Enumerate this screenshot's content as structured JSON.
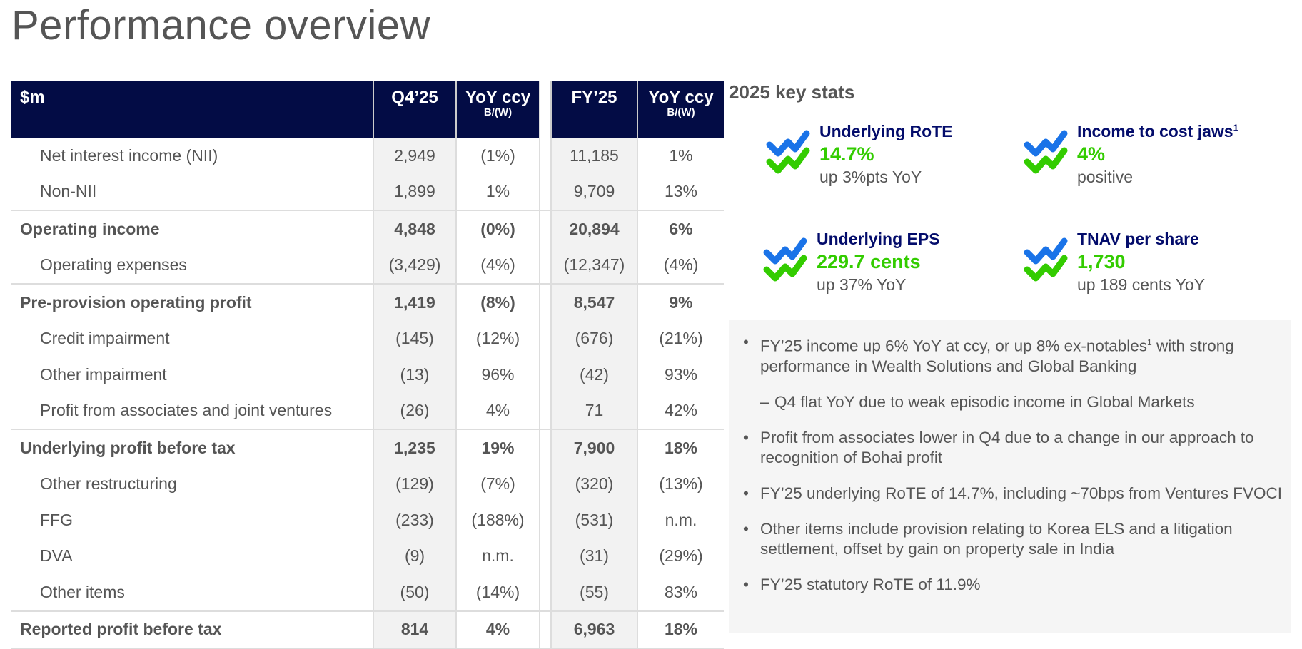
{
  "title": "Performance overview",
  "table": {
    "headers": {
      "label": "$m",
      "q4": "Q4’25",
      "yoy1": "YoY ccy",
      "yoy1_sub": "B/(W)",
      "fy": "FY’25",
      "yoy2": "YoY ccy",
      "yoy2_sub": "B/(W)"
    },
    "rows": [
      {
        "label": "Net interest income (NII)",
        "q4": "2,949",
        "yoy_q4": "(1%)",
        "fy": "11,185",
        "yoy_fy": "1%"
      },
      {
        "label": "Non-NII",
        "q4": "1,899",
        "yoy_q4": "1%",
        "fy": "9,709",
        "yoy_fy": "13%"
      },
      {
        "label": "Operating income",
        "q4": "4,848",
        "yoy_q4": "(0%)",
        "fy": "20,894",
        "yoy_fy": "6%"
      },
      {
        "label": "Operating expenses",
        "q4": "(3,429)",
        "yoy_q4": "(4%)",
        "fy": "(12,347)",
        "yoy_fy": "(4%)"
      },
      {
        "label": "Pre-provision operating profit",
        "q4": "1,419",
        "yoy_q4": "(8%)",
        "fy": "8,547",
        "yoy_fy": "9%"
      },
      {
        "label": "Credit impairment",
        "q4": "(145)",
        "yoy_q4": "(12%)",
        "fy": "(676)",
        "yoy_fy": "(21%)"
      },
      {
        "label": "Other impairment",
        "q4": "(13)",
        "yoy_q4": "96%",
        "fy": "(42)",
        "yoy_fy": "93%"
      },
      {
        "label": "Profit from associates and joint ventures",
        "q4": "(26)",
        "yoy_q4": "4%",
        "fy": "71",
        "yoy_fy": "42%"
      },
      {
        "label": "Underlying profit before tax",
        "q4": "1,235",
        "yoy_q4": "19%",
        "fy": "7,900",
        "yoy_fy": "18%"
      },
      {
        "label": "Other restructuring",
        "q4": "(129)",
        "yoy_q4": "(7%)",
        "fy": "(320)",
        "yoy_fy": "(13%)"
      },
      {
        "label": "FFG",
        "q4": "(233)",
        "yoy_q4": "(188%)",
        "fy": "(531)",
        "yoy_fy": "n.m."
      },
      {
        "label": "DVA",
        "q4": "(9)",
        "yoy_q4": "n.m.",
        "fy": "(31)",
        "yoy_fy": "(29%)"
      },
      {
        "label": "Other items",
        "q4": "(50)",
        "yoy_q4": "(14%)",
        "fy": "(55)",
        "yoy_fy": "83%"
      },
      {
        "label": "Reported profit before tax",
        "q4": "814",
        "yoy_q4": "4%",
        "fy": "6,963",
        "yoy_fy": "18%"
      }
    ]
  },
  "key_stats": {
    "heading": "2025 key stats",
    "icon": "double-trend-check-icon",
    "colors": {
      "title": "#030c6b",
      "value": "#33cc00",
      "icon_blue": "#1a73e8",
      "icon_green": "#33cc00"
    },
    "items": [
      {
        "title": "Underlying RoTE",
        "sup": "",
        "value": "14.7%",
        "sub": "up 3%pts YoY"
      },
      {
        "title": "Income to cost jaws",
        "sup": "1",
        "value": "4%",
        "sub": "positive"
      },
      {
        "title": "Underlying EPS",
        "sup": "",
        "value": "229.7 cents",
        "sub": "up 37% YoY"
      },
      {
        "title": "TNAV per share",
        "sup": "",
        "value": "1,730",
        "sub": "up 189 cents YoY"
      }
    ]
  },
  "notes": {
    "b1a": "FY’25 income up 6% YoY at ccy, or up 8% ex-notables",
    "b1sup": "1",
    "b1b": " with strong performance in Wealth Solutions and Global Banking",
    "b1sub": "Q4 flat YoY due to weak episodic income in Global Markets",
    "b2": "Profit from associates lower in Q4 due to a change in our approach to recognition of Bohai profit",
    "b3": "FY’25 underlying RoTE of 14.7%, including ~70bps from Ventures FVOCI",
    "b4": "Other items include provision relating to Korea ELS and a litigation settlement, offset by gain on property sale in India",
    "b5": "FY’25 statutory RoTE of 11.9%"
  }
}
